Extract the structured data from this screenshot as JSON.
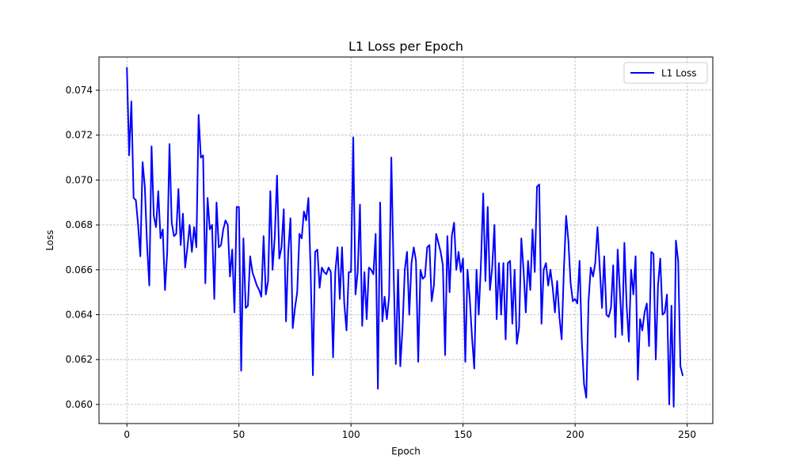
{
  "chart_data": {
    "type": "line",
    "title": "L1 Loss per Epoch",
    "xlabel": "Epoch",
    "ylabel": "Loss",
    "xlim": [
      -12.45,
      261.45
    ],
    "ylim": [
      0.05915,
      0.07548
    ],
    "xticks": [
      0,
      50,
      100,
      150,
      200,
      250
    ],
    "xtick_labels": [
      "0",
      "50",
      "100",
      "150",
      "200",
      "250"
    ],
    "yticks": [
      0.06,
      0.062,
      0.064,
      0.066,
      0.068,
      0.07,
      0.072,
      0.074
    ],
    "ytick_labels": [
      "0.060",
      "0.062",
      "0.064",
      "0.066",
      "0.068",
      "0.070",
      "0.072",
      "0.074"
    ],
    "grid": true,
    "legend_position": "top-right",
    "series": [
      {
        "name": "L1 Loss",
        "color": "#0000ff",
        "x_start": 0,
        "x_step": 1,
        "values": [
          0.075,
          0.0711,
          0.0735,
          0.0692,
          0.0691,
          0.068,
          0.0666,
          0.0708,
          0.0697,
          0.0671,
          0.0653,
          0.0715,
          0.0684,
          0.0679,
          0.0695,
          0.0674,
          0.0678,
          0.0651,
          0.0668,
          0.0716,
          0.0681,
          0.0675,
          0.0676,
          0.0696,
          0.0671,
          0.0685,
          0.0661,
          0.067,
          0.068,
          0.0668,
          0.0679,
          0.067,
          0.0729,
          0.071,
          0.0711,
          0.0654,
          0.0692,
          0.0678,
          0.068,
          0.0647,
          0.069,
          0.067,
          0.0671,
          0.0678,
          0.0682,
          0.068,
          0.0657,
          0.0669,
          0.0641,
          0.0688,
          0.0688,
          0.0615,
          0.0674,
          0.0643,
          0.0644,
          0.0666,
          0.0659,
          0.0656,
          0.0653,
          0.0651,
          0.0648,
          0.0675,
          0.0649,
          0.0655,
          0.0695,
          0.066,
          0.0675,
          0.0702,
          0.0665,
          0.067,
          0.0687,
          0.0637,
          0.0668,
          0.0683,
          0.0634,
          0.0643,
          0.065,
          0.0676,
          0.0674,
          0.0686,
          0.0682,
          0.0692,
          0.0659,
          0.0613,
          0.0668,
          0.0669,
          0.0652,
          0.0661,
          0.0659,
          0.0658,
          0.0661,
          0.0659,
          0.0621,
          0.0659,
          0.067,
          0.0647,
          0.067,
          0.0645,
          0.0633,
          0.0659,
          0.0659,
          0.0719,
          0.0649,
          0.0659,
          0.0689,
          0.0635,
          0.0659,
          0.0638,
          0.0661,
          0.066,
          0.0658,
          0.0676,
          0.0607,
          0.069,
          0.0637,
          0.0648,
          0.0638,
          0.0648,
          0.071,
          0.066,
          0.0618,
          0.066,
          0.0617,
          0.0634,
          0.066,
          0.0668,
          0.064,
          0.0663,
          0.067,
          0.0664,
          0.0619,
          0.066,
          0.0656,
          0.0657,
          0.067,
          0.0671,
          0.0646,
          0.0653,
          0.0676,
          0.0672,
          0.0668,
          0.0662,
          0.0622,
          0.0675,
          0.065,
          0.0675,
          0.0681,
          0.066,
          0.0668,
          0.0659,
          0.0665,
          0.0619,
          0.066,
          0.0647,
          0.063,
          0.0616,
          0.066,
          0.064,
          0.0663,
          0.0694,
          0.0655,
          0.0688,
          0.0651,
          0.0661,
          0.068,
          0.0638,
          0.0663,
          0.064,
          0.0663,
          0.0629,
          0.0663,
          0.0664,
          0.0636,
          0.066,
          0.0627,
          0.0634,
          0.0674,
          0.066,
          0.0641,
          0.0664,
          0.0651,
          0.0678,
          0.0659,
          0.0697,
          0.0698,
          0.0636,
          0.066,
          0.0663,
          0.0653,
          0.066,
          0.0652,
          0.0641,
          0.0655,
          0.0639,
          0.0629,
          0.066,
          0.0684,
          0.0673,
          0.0654,
          0.0646,
          0.0647,
          0.0645,
          0.0664,
          0.0628,
          0.0609,
          0.0603,
          0.0646,
          0.0661,
          0.0657,
          0.0663,
          0.0679,
          0.0661,
          0.0643,
          0.0666,
          0.064,
          0.0639,
          0.0643,
          0.0662,
          0.063,
          0.0669,
          0.065,
          0.0631,
          0.0672,
          0.0644,
          0.0628,
          0.066,
          0.0649,
          0.0666,
          0.0611,
          0.0638,
          0.0633,
          0.0641,
          0.0645,
          0.0626,
          0.0668,
          0.0667,
          0.062,
          0.0653,
          0.0665,
          0.064,
          0.0641,
          0.0649,
          0.06,
          0.0644,
          0.0599,
          0.0673,
          0.0664,
          0.0617,
          0.0613
        ]
      }
    ]
  }
}
